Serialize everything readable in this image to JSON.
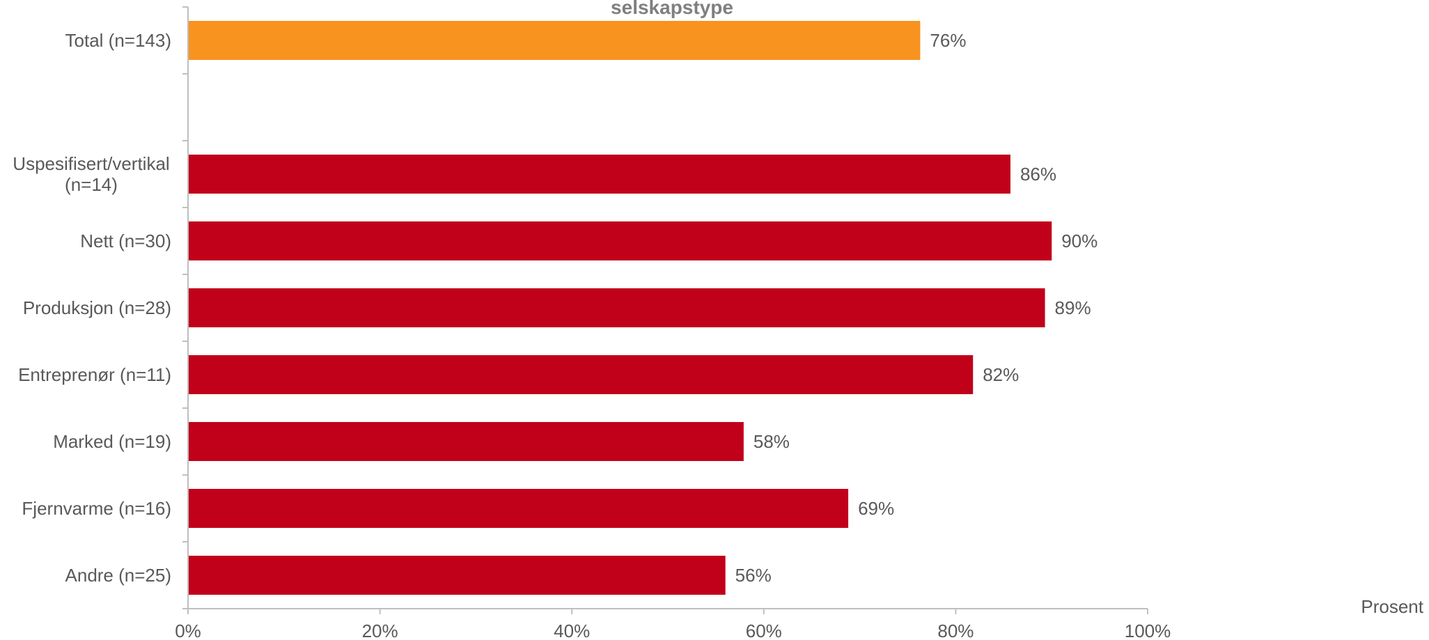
{
  "chart_data": {
    "type": "bar",
    "orientation": "horizontal",
    "title": "selskapstype",
    "xlabel": "Prosent",
    "ylabel": "",
    "xlim": [
      0,
      100
    ],
    "x_ticks": [
      "0%",
      "20%",
      "40%",
      "60%",
      "80%",
      "100%"
    ],
    "grid": false,
    "legend": "none",
    "categories": [
      "Total (n=143)",
      "",
      "Uspesifisert/vertikal (n=14)",
      "Nett (n=30)",
      "Produksjon (n=28)",
      "Entreprenør (n=11)",
      "Marked (n=19)",
      "Fjernvarme (n=16)",
      "Andre (n=25)"
    ],
    "values": [
      76.3,
      null,
      85.7,
      90.0,
      89.3,
      81.8,
      57.9,
      68.8,
      56.0
    ],
    "data_labels": [
      "76%",
      "",
      "86%",
      "90%",
      "89%",
      "82%",
      "58%",
      "69%",
      "56%"
    ],
    "bar_colors": [
      "#F7931E",
      null,
      "#C1001A",
      "#C1001A",
      "#C1001A",
      "#C1001A",
      "#C1001A",
      "#C1001A",
      "#C1001A"
    ]
  },
  "colors": {
    "axis": "#BFBFBF",
    "label_text": "#595959",
    "title_text": "#7F7F7F"
  }
}
